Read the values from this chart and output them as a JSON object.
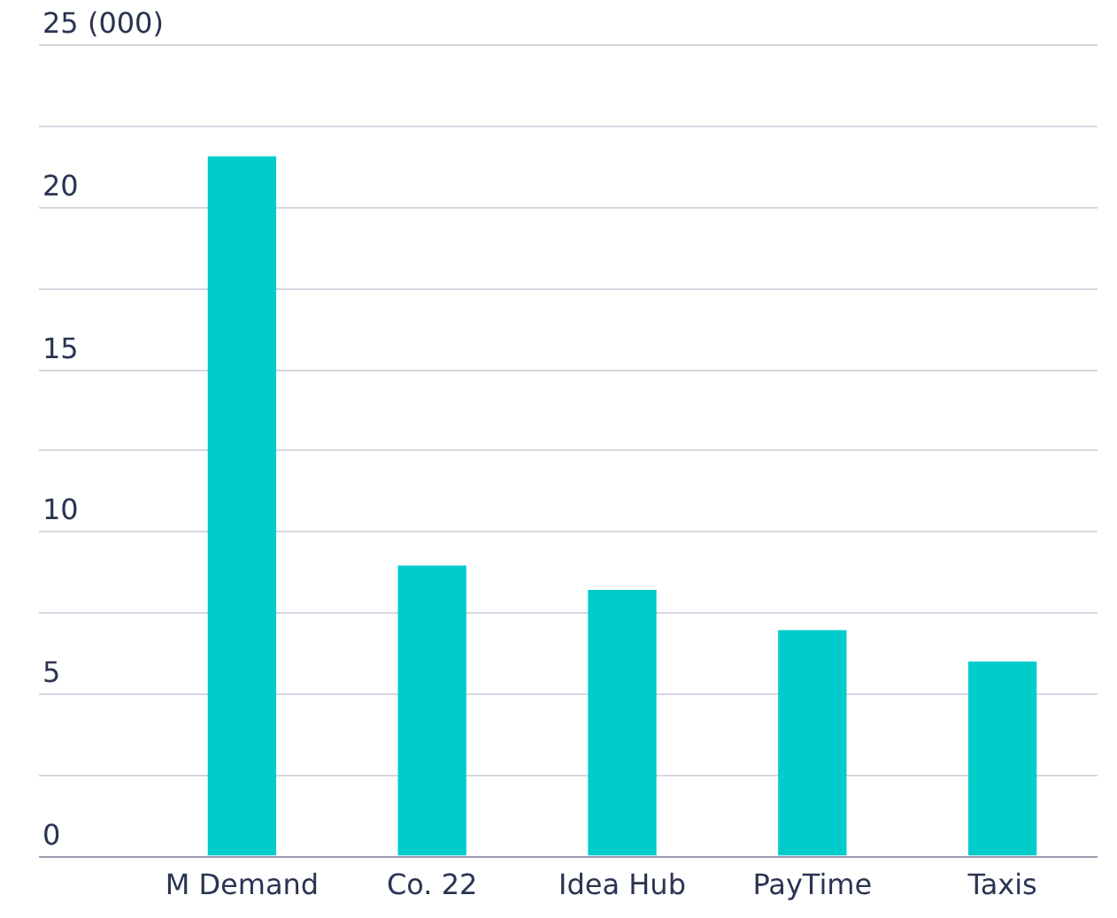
{
  "chart_data": {
    "type": "bar",
    "categories": [
      "M Demand",
      "Co. 22",
      "Idea Hub",
      "PayTime",
      "Taxis"
    ],
    "values": [
      21.55,
      8.94,
      8.19,
      6.95,
      5.98
    ],
    "color": "#00cccc",
    "ylim": [
      0,
      25
    ],
    "yticks": [
      0,
      {
        "value": 2.5,
        "label": null
      },
      5,
      {
        "value": 7.5,
        "label": null
      },
      10,
      {
        "value": 12.5,
        "label": null
      },
      15,
      {
        "value": 17.5,
        "label": null
      },
      20,
      {
        "value": 22.5,
        "label": null
      },
      {
        "value": 25,
        "label": "25 (000)"
      }
    ],
    "grid": "y",
    "legend": false
  }
}
